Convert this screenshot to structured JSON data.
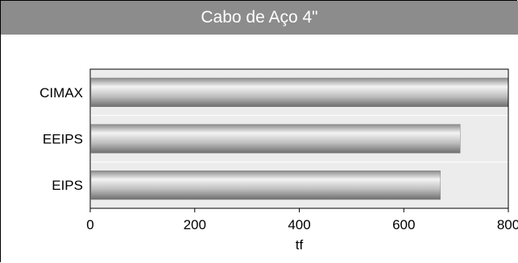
{
  "chart_data": {
    "type": "bar",
    "orientation": "horizontal",
    "title": "Cabo de Aço 4\"",
    "categories": [
      "CIMAX",
      "EEIPS",
      "EIPS"
    ],
    "values": [
      800,
      708,
      670
    ],
    "xlabel": "tf",
    "ylabel": "",
    "xlim": [
      0,
      800
    ],
    "xticks": [
      0,
      200,
      400,
      600,
      800
    ],
    "grid": true,
    "legend": "none",
    "colors": {
      "title_bg": "#8c8c8c",
      "title_text": "#ffffff",
      "plot_bg": "#ececec",
      "bar_light": "#f4f4f4",
      "bar_mid": "#b4b4b4",
      "bar_dark": "#6e6e6e"
    }
  }
}
